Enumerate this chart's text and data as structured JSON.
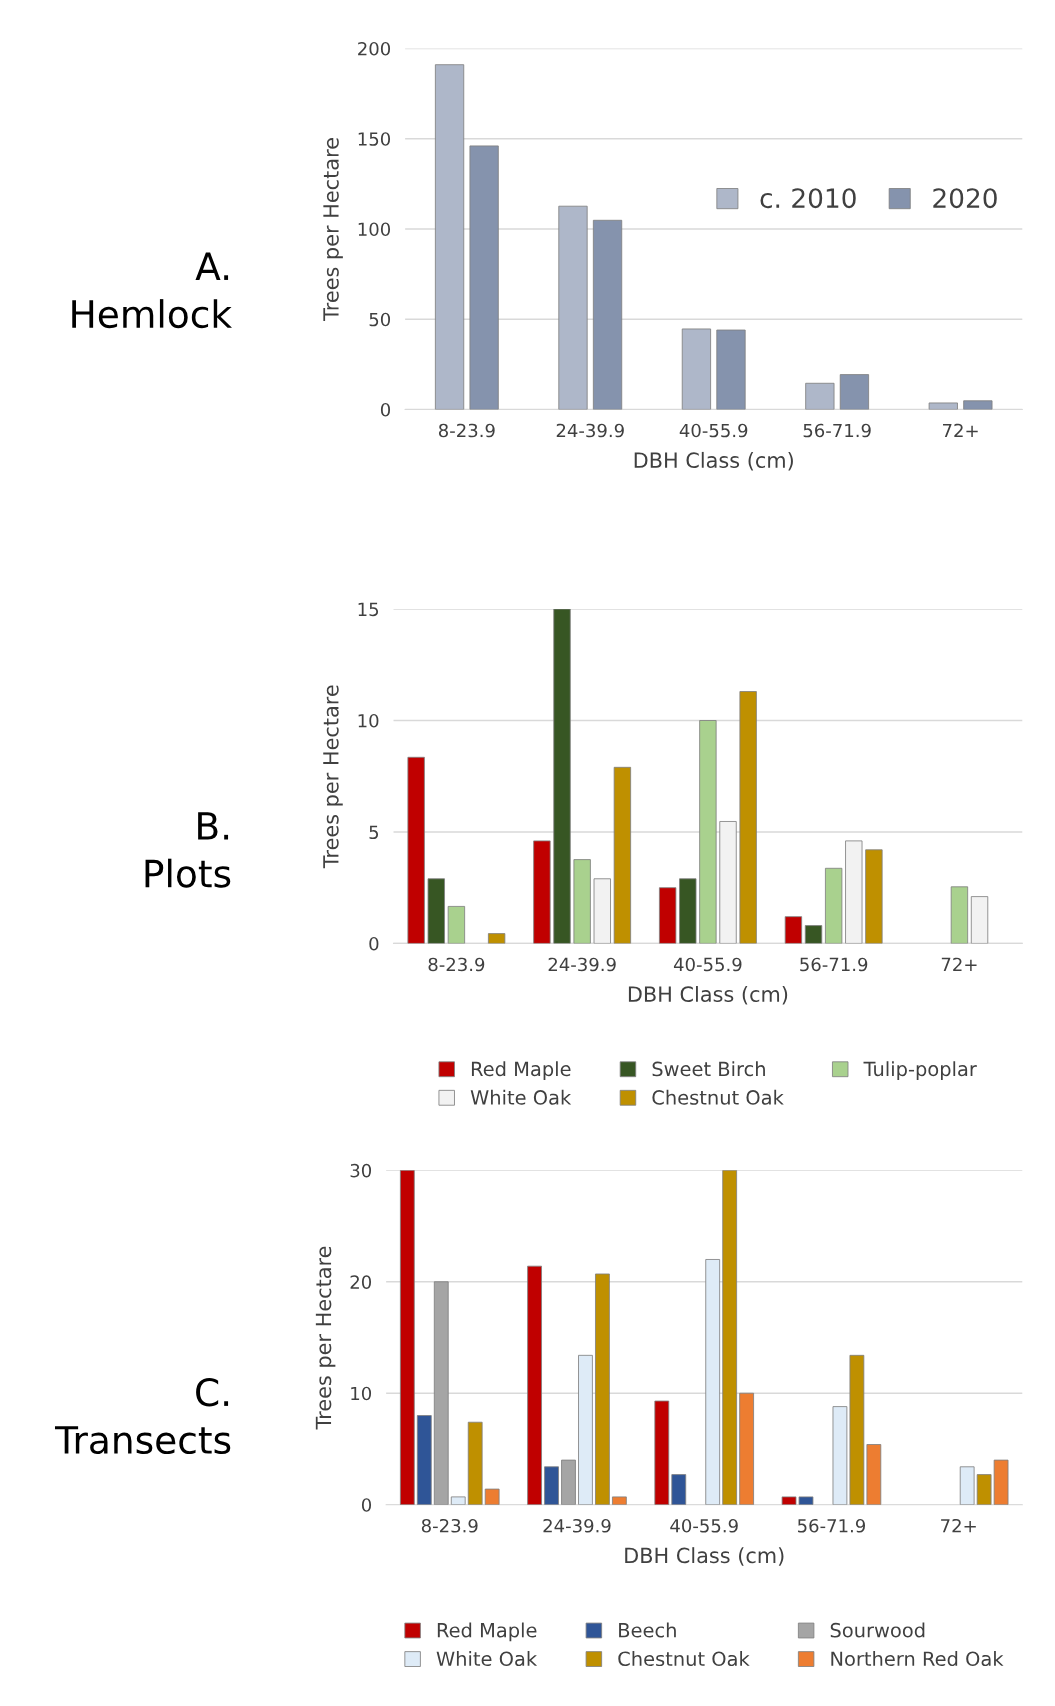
{
  "chart_data": [
    {
      "type": "bar",
      "title": "A.\nHemlock",
      "xlabel": "DBH Class (cm)",
      "ylabel": "Trees per Hectare",
      "categories": [
        "8-23.9",
        "24-39.9",
        "40-55.9",
        "56-71.9",
        "72+"
      ],
      "ylim": [
        0,
        200
      ],
      "yticks": [
        0,
        50,
        100,
        150,
        200
      ],
      "grid": "y",
      "legend": "top right",
      "series": [
        {
          "name": "c. 2010",
          "color": "#aeb7c9",
          "values": [
            191,
            112.6,
            44.6,
            14.5,
            3.6
          ]
        },
        {
          "name": "2020",
          "color": "#8593ad",
          "values": [
            146,
            104.8,
            44,
            19.3,
            4.8
          ]
        }
      ]
    },
    {
      "type": "bar",
      "title": "B.\nPlots",
      "xlabel": "DBH Class (cm)",
      "ylabel": "Trees per Hectare",
      "categories": [
        "8-23.9",
        "24-39.9",
        "40-55.9",
        "56-71.9",
        "72+"
      ],
      "ylim": [
        0,
        15
      ],
      "yticks": [
        0,
        5,
        10,
        15
      ],
      "grid": "y",
      "legend": "bottom",
      "series": [
        {
          "name": "Red Maple",
          "color": "#c00000",
          "values": [
            8.35,
            4.6,
            2.5,
            1.2,
            null
          ]
        },
        {
          "name": "Sweet Birch",
          "color": "#375623",
          "values": [
            2.9,
            15,
            2.9,
            0.8,
            null
          ]
        },
        {
          "name": "Tulip-poplar",
          "color": "#a9d18e",
          "values": [
            1.66,
            3.76,
            10,
            3.37,
            2.54
          ]
        },
        {
          "name": "White Oak",
          "color": "#f2f2f2",
          "values": [
            null,
            2.9,
            5.47,
            4.6,
            2.1
          ]
        },
        {
          "name": "Chestnut Oak",
          "color": "#bf9000",
          "values": [
            0.44,
            7.9,
            11.3,
            4.2,
            null
          ]
        }
      ]
    },
    {
      "type": "bar",
      "title": "C.\nTransects",
      "xlabel": "DBH Class (cm)",
      "ylabel": "Trees per Hectare",
      "categories": [
        "8-23.9",
        "24-39.9",
        "40-55.9",
        "56-71.9",
        "72+"
      ],
      "ylim": [
        0,
        30
      ],
      "yticks": [
        0,
        10,
        20,
        30
      ],
      "grid": "y",
      "legend": "bottom",
      "series": [
        {
          "name": "Red Maple",
          "color": "#c00000",
          "values": [
            30,
            21.4,
            9.3,
            0.7,
            null
          ]
        },
        {
          "name": "Beech",
          "color": "#2f5597",
          "values": [
            8,
            3.4,
            2.7,
            0.7,
            null
          ]
        },
        {
          "name": "Sourwood",
          "color": "#a5a5a5",
          "values": [
            20,
            4,
            null,
            null,
            null
          ]
        },
        {
          "name": "White Oak",
          "color": "#deebf7",
          "values": [
            0.7,
            13.4,
            22,
            8.8,
            3.4
          ]
        },
        {
          "name": "Chestnut Oak",
          "color": "#bf9000",
          "values": [
            7.4,
            20.7,
            30,
            13.4,
            2.7
          ]
        },
        {
          "name": "Northern Red Oak",
          "color": "#ed7d31",
          "values": [
            1.4,
            0.7,
            10,
            5.4,
            4
          ]
        }
      ]
    }
  ]
}
